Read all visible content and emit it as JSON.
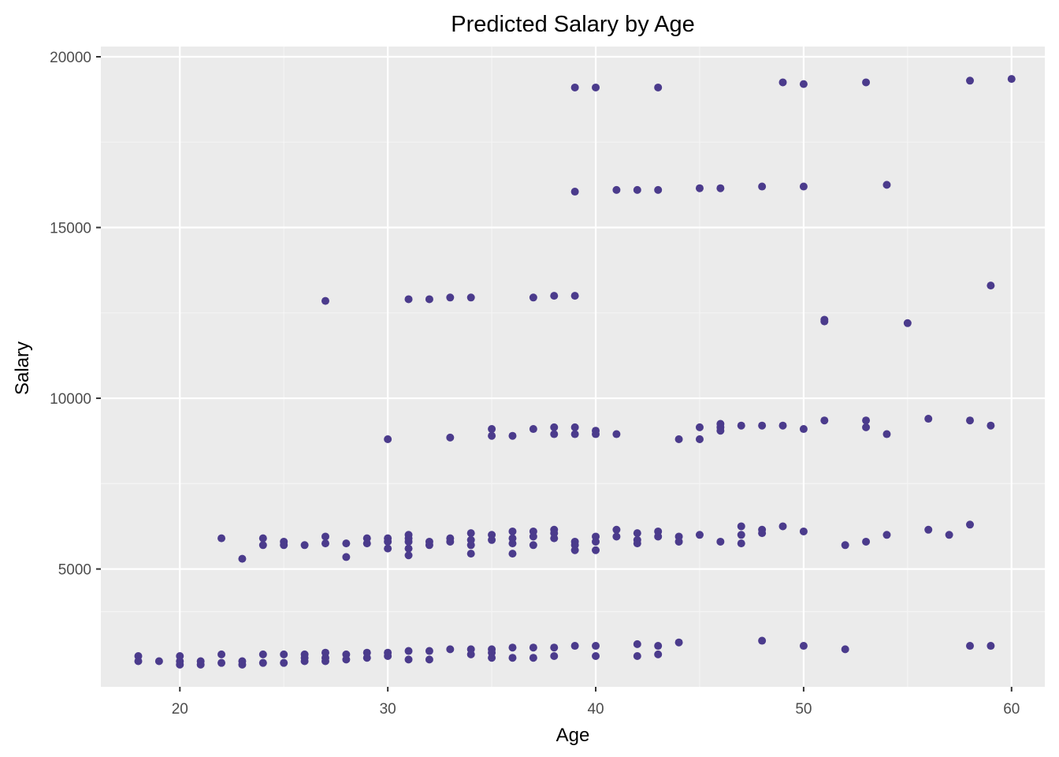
{
  "chart_data": {
    "type": "scatter",
    "title": "Predicted Salary by Age",
    "xlabel": "Age",
    "ylabel": "Salary",
    "xlim": [
      16.2,
      61.6
    ],
    "ylim": [
      1550,
      20300
    ],
    "x_ticks": [
      20,
      30,
      40,
      50,
      60
    ],
    "y_ticks": [
      5000,
      10000,
      15000,
      20000
    ],
    "x_tick_labels": [
      "20",
      "30",
      "40",
      "50",
      "60"
    ],
    "y_tick_labels": [
      "5000",
      "10000",
      "15000",
      "20000"
    ],
    "grid": true,
    "background": "#EBEBEB",
    "point_color": "#4B3B8C",
    "points": [
      [
        18,
        2450
      ],
      [
        18,
        2300
      ],
      [
        19,
        2300
      ],
      [
        20,
        2450
      ],
      [
        20,
        2300
      ],
      [
        20,
        2200
      ],
      [
        21,
        2300
      ],
      [
        21,
        2200
      ],
      [
        22,
        2500
      ],
      [
        22,
        2250
      ],
      [
        23,
        2300
      ],
      [
        23,
        2200
      ],
      [
        24,
        2500
      ],
      [
        24,
        2250
      ],
      [
        25,
        2500
      ],
      [
        25,
        2250
      ],
      [
        26,
        2500
      ],
      [
        26,
        2400
      ],
      [
        26,
        2300
      ],
      [
        27,
        2550
      ],
      [
        27,
        2400
      ],
      [
        27,
        2300
      ],
      [
        28,
        2500
      ],
      [
        28,
        2350
      ],
      [
        29,
        2550
      ],
      [
        29,
        2400
      ],
      [
        30,
        2550
      ],
      [
        30,
        2450
      ],
      [
        31,
        2600
      ],
      [
        31,
        2350
      ],
      [
        32,
        2600
      ],
      [
        32,
        2350
      ],
      [
        33,
        2650
      ],
      [
        34,
        2650
      ],
      [
        34,
        2500
      ],
      [
        35,
        2650
      ],
      [
        35,
        2550
      ],
      [
        35,
        2400
      ],
      [
        36,
        2700
      ],
      [
        36,
        2400
      ],
      [
        37,
        2700
      ],
      [
        37,
        2400
      ],
      [
        38,
        2700
      ],
      [
        38,
        2450
      ],
      [
        39,
        2750
      ],
      [
        40,
        2750
      ],
      [
        40,
        2450
      ],
      [
        42,
        2800
      ],
      [
        42,
        2450
      ],
      [
        43,
        2750
      ],
      [
        43,
        2500
      ],
      [
        44,
        2850
      ],
      [
        48,
        2900
      ],
      [
        50,
        2750
      ],
      [
        52,
        2650
      ],
      [
        58,
        2750
      ],
      [
        59,
        2750
      ],
      [
        22,
        5900
      ],
      [
        23,
        5300
      ],
      [
        24,
        5900
      ],
      [
        24,
        5700
      ],
      [
        25,
        5800
      ],
      [
        25,
        5700
      ],
      [
        26,
        5700
      ],
      [
        27,
        5950
      ],
      [
        27,
        5750
      ],
      [
        28,
        5750
      ],
      [
        28,
        5350
      ],
      [
        29,
        5900
      ],
      [
        29,
        5750
      ],
      [
        30,
        5900
      ],
      [
        30,
        5800
      ],
      [
        30,
        5600
      ],
      [
        31,
        6000
      ],
      [
        31,
        5900
      ],
      [
        31,
        5800
      ],
      [
        31,
        5600
      ],
      [
        31,
        5400
      ],
      [
        32,
        5800
      ],
      [
        32,
        5700
      ],
      [
        33,
        5900
      ],
      [
        33,
        5800
      ],
      [
        34,
        6050
      ],
      [
        34,
        5850
      ],
      [
        34,
        5700
      ],
      [
        34,
        5450
      ],
      [
        35,
        6000
      ],
      [
        35,
        5850
      ],
      [
        36,
        6100
      ],
      [
        36,
        5900
      ],
      [
        36,
        5750
      ],
      [
        36,
        5450
      ],
      [
        37,
        6100
      ],
      [
        37,
        5950
      ],
      [
        37,
        5700
      ],
      [
        38,
        6150
      ],
      [
        38,
        6050
      ],
      [
        38,
        5900
      ],
      [
        39,
        5800
      ],
      [
        39,
        5700
      ],
      [
        39,
        5550
      ],
      [
        40,
        5950
      ],
      [
        40,
        5800
      ],
      [
        40,
        5550
      ],
      [
        41,
        6150
      ],
      [
        41,
        5950
      ],
      [
        42,
        6050
      ],
      [
        42,
        5850
      ],
      [
        42,
        5750
      ],
      [
        43,
        6100
      ],
      [
        43,
        5950
      ],
      [
        44,
        5950
      ],
      [
        44,
        5800
      ],
      [
        45,
        6000
      ],
      [
        46,
        5800
      ],
      [
        47,
        6250
      ],
      [
        47,
        6000
      ],
      [
        47,
        5750
      ],
      [
        48,
        6150
      ],
      [
        48,
        6050
      ],
      [
        49,
        6250
      ],
      [
        50,
        6100
      ],
      [
        52,
        5700
      ],
      [
        53,
        5800
      ],
      [
        54,
        6000
      ],
      [
        56,
        6150
      ],
      [
        57,
        6000
      ],
      [
        58,
        6300
      ],
      [
        30,
        8800
      ],
      [
        33,
        8850
      ],
      [
        35,
        9100
      ],
      [
        35,
        8900
      ],
      [
        36,
        8900
      ],
      [
        37,
        9100
      ],
      [
        38,
        9150
      ],
      [
        38,
        8950
      ],
      [
        39,
        9150
      ],
      [
        39,
        8950
      ],
      [
        40,
        9050
      ],
      [
        40,
        8950
      ],
      [
        41,
        8950
      ],
      [
        44,
        8800
      ],
      [
        45,
        9150
      ],
      [
        45,
        8800
      ],
      [
        46,
        9250
      ],
      [
        46,
        9150
      ],
      [
        46,
        9050
      ],
      [
        47,
        9200
      ],
      [
        48,
        9200
      ],
      [
        49,
        9200
      ],
      [
        50,
        9100
      ],
      [
        51,
        9350
      ],
      [
        53,
        9350
      ],
      [
        53,
        9150
      ],
      [
        54,
        8950
      ],
      [
        56,
        9400
      ],
      [
        58,
        9350
      ],
      [
        59,
        9200
      ],
      [
        27,
        12850
      ],
      [
        31,
        12900
      ],
      [
        32,
        12900
      ],
      [
        33,
        12950
      ],
      [
        34,
        12950
      ],
      [
        37,
        12950
      ],
      [
        38,
        13000
      ],
      [
        39,
        13000
      ],
      [
        51,
        12300
      ],
      [
        51,
        12250
      ],
      [
        55,
        12200
      ],
      [
        59,
        13300
      ],
      [
        39,
        16050
      ],
      [
        41,
        16100
      ],
      [
        42,
        16100
      ],
      [
        43,
        16100
      ],
      [
        45,
        16150
      ],
      [
        46,
        16150
      ],
      [
        48,
        16200
      ],
      [
        50,
        16200
      ],
      [
        54,
        16250
      ],
      [
        39,
        19100
      ],
      [
        40,
        19100
      ],
      [
        43,
        19100
      ],
      [
        49,
        19250
      ],
      [
        50,
        19200
      ],
      [
        53,
        19250
      ],
      [
        58,
        19300
      ],
      [
        60,
        19350
      ]
    ]
  }
}
